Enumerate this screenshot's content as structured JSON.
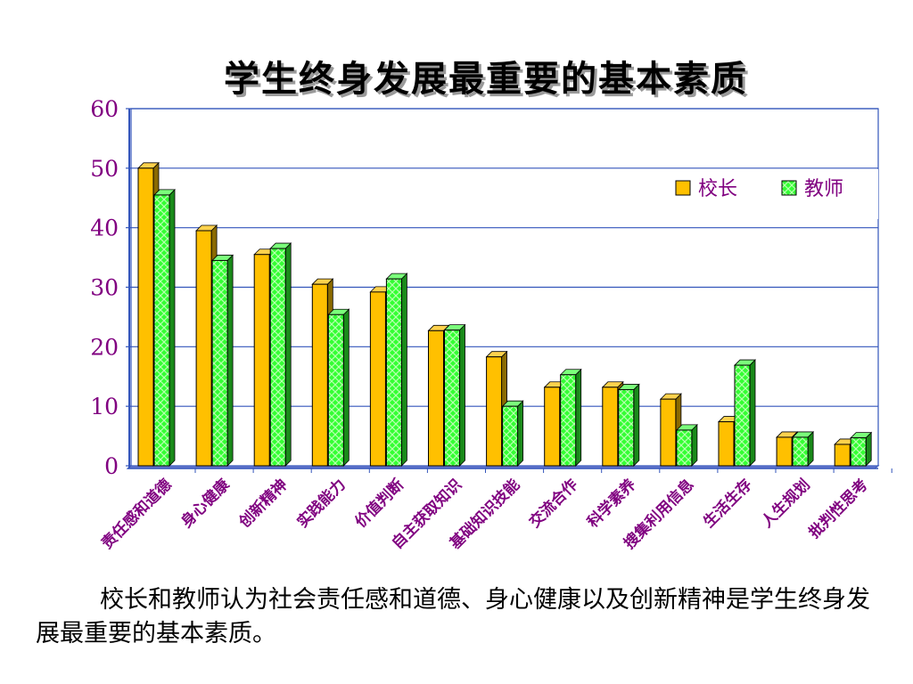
{
  "title": "学生终身发展最重要的基本素质",
  "caption": "校长和教师认为社会责任感和道德、身心健康以及创新精神是学生终身发展最重要的基本素质。",
  "chart_data": {
    "type": "bar",
    "title": "学生终身发展最重要的基本素质",
    "xlabel": "",
    "ylabel": "",
    "ylim": [
      0,
      60
    ],
    "yticks": [
      0,
      10,
      20,
      30,
      40,
      50,
      60
    ],
    "grid": true,
    "legend_position": "top-right",
    "categories": [
      "责任感和道德",
      "身心健康",
      "创新精神",
      "实践能力",
      "价值判断",
      "自主获取知识",
      "基础知识技能",
      "交流合作",
      "科学素养",
      "搜集利用信息",
      "生活生存",
      "人生规划",
      "批判性思考"
    ],
    "series": [
      {
        "name": "校长",
        "color": "#FFC000",
        "values": [
          50,
          39.5,
          35.5,
          30.5,
          29.2,
          22.7,
          18.3,
          13.2,
          13.2,
          11.2,
          7.4,
          4.8,
          3.6
        ]
      },
      {
        "name": "教师",
        "color": "#33FF33",
        "values": [
          45.5,
          34.5,
          36.5,
          25.4,
          31.4,
          22.8,
          10,
          15.3,
          12.8,
          6,
          16.9,
          4.8,
          4.7
        ]
      }
    ]
  }
}
